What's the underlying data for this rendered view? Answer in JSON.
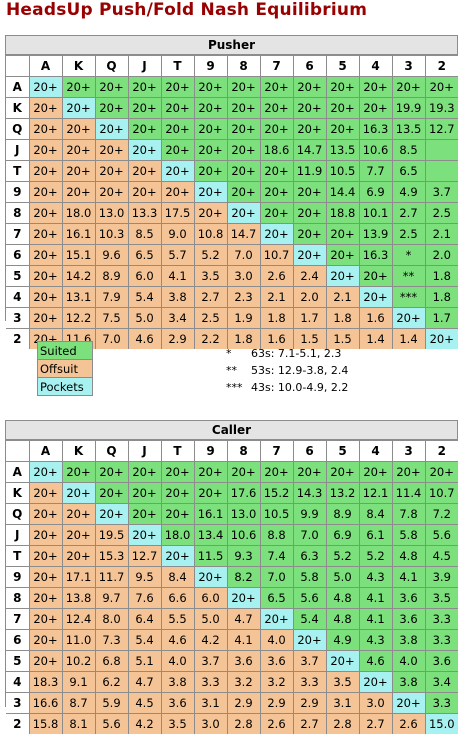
{
  "page": {
    "title": "HeadsUp Push/Fold Nash Equilibrium"
  },
  "ranks": [
    "A",
    "K",
    "Q",
    "J",
    "T",
    "9",
    "8",
    "7",
    "6",
    "5",
    "4",
    "3",
    "2"
  ],
  "pusher": {
    "title": "Pusher",
    "rows": [
      [
        "20+",
        "20+",
        "20+",
        "20+",
        "20+",
        "20+",
        "20+",
        "20+",
        "20+",
        "20+",
        "20+",
        "20+",
        "20+"
      ],
      [
        "20+",
        "20+",
        "20+",
        "20+",
        "20+",
        "20+",
        "20+",
        "20+",
        "20+",
        "20+",
        "20+",
        "19.9",
        "19.3"
      ],
      [
        "20+",
        "20+",
        "20+",
        "20+",
        "20+",
        "20+",
        "20+",
        "20+",
        "20+",
        "20+",
        "16.3",
        "13.5",
        "12.7"
      ],
      [
        "20+",
        "20+",
        "20+",
        "20+",
        "20+",
        "20+",
        "20+",
        "18.6",
        "14.7",
        "13.5",
        "10.6",
        "8.5",
        ""
      ],
      [
        "20+",
        "20+",
        "20+",
        "20+",
        "20+",
        "20+",
        "20+",
        "20+",
        "11.9",
        "10.5",
        "7.7",
        "6.5",
        ""
      ],
      [
        "20+",
        "20+",
        "20+",
        "20+",
        "20+",
        "20+",
        "20+",
        "20+",
        "20+",
        "14.4",
        "6.9",
        "4.9",
        "3.7"
      ],
      [
        "20+",
        "18.0",
        "13.0",
        "13.3",
        "17.5",
        "20+",
        "20+",
        "20+",
        "20+",
        "18.8",
        "10.1",
        "2.7",
        "2.5"
      ],
      [
        "20+",
        "16.1",
        "10.3",
        "8.5",
        "9.0",
        "10.8",
        "14.7",
        "20+",
        "20+",
        "20+",
        "13.9",
        "2.5",
        "2.1"
      ],
      [
        "20+",
        "15.1",
        "9.6",
        "6.5",
        "5.7",
        "5.2",
        "7.0",
        "10.7",
        "20+",
        "20+",
        "16.3",
        "*",
        "2.0"
      ],
      [
        "20+",
        "14.2",
        "8.9",
        "6.0",
        "4.1",
        "3.5",
        "3.0",
        "2.6",
        "2.4",
        "20+",
        "20+",
        "**",
        "1.8"
      ],
      [
        "20+",
        "13.1",
        "7.9",
        "5.4",
        "3.8",
        "2.7",
        "2.3",
        "2.1",
        "2.0",
        "2.1",
        "20+",
        "***",
        "1.8"
      ],
      [
        "20+",
        "12.2",
        "7.5",
        "5.0",
        "3.4",
        "2.5",
        "1.9",
        "1.8",
        "1.7",
        "1.8",
        "1.6",
        "20+",
        "1.7"
      ],
      [
        "20+",
        "11.6",
        "7.0",
        "4.6",
        "2.9",
        "2.2",
        "1.8",
        "1.6",
        "1.5",
        "1.5",
        "1.4",
        "1.4",
        "20+"
      ]
    ]
  },
  "caller": {
    "title": "Caller",
    "rows": [
      [
        "20+",
        "20+",
        "20+",
        "20+",
        "20+",
        "20+",
        "20+",
        "20+",
        "20+",
        "20+",
        "20+",
        "20+",
        "20+"
      ],
      [
        "20+",
        "20+",
        "20+",
        "20+",
        "20+",
        "20+",
        "17.6",
        "15.2",
        "14.3",
        "13.2",
        "12.1",
        "11.4",
        "10.7"
      ],
      [
        "20+",
        "20+",
        "20+",
        "20+",
        "20+",
        "16.1",
        "13.0",
        "10.5",
        "9.9",
        "8.9",
        "8.4",
        "7.8",
        "7.2"
      ],
      [
        "20+",
        "20+",
        "19.5",
        "20+",
        "18.0",
        "13.4",
        "10.6",
        "8.8",
        "7.0",
        "6.9",
        "6.1",
        "5.8",
        "5.6"
      ],
      [
        "20+",
        "20+",
        "15.3",
        "12.7",
        "20+",
        "11.5",
        "9.3",
        "7.4",
        "6.3",
        "5.2",
        "5.2",
        "4.8",
        "4.5"
      ],
      [
        "20+",
        "17.1",
        "11.7",
        "9.5",
        "8.4",
        "20+",
        "8.2",
        "7.0",
        "5.8",
        "5.0",
        "4.3",
        "4.1",
        "3.9"
      ],
      [
        "20+",
        "13.8",
        "9.7",
        "7.6",
        "6.6",
        "6.0",
        "20+",
        "6.5",
        "5.6",
        "4.8",
        "4.1",
        "3.6",
        "3.5"
      ],
      [
        "20+",
        "12.4",
        "8.0",
        "6.4",
        "5.5",
        "5.0",
        "4.7",
        "20+",
        "5.4",
        "4.8",
        "4.1",
        "3.6",
        "3.3"
      ],
      [
        "20+",
        "11.0",
        "7.3",
        "5.4",
        "4.6",
        "4.2",
        "4.1",
        "4.0",
        "20+",
        "4.9",
        "4.3",
        "3.8",
        "3.3"
      ],
      [
        "20+",
        "10.2",
        "6.8",
        "5.1",
        "4.0",
        "3.7",
        "3.6",
        "3.6",
        "3.7",
        "20+",
        "4.6",
        "4.0",
        "3.6"
      ],
      [
        "18.3",
        "9.1",
        "6.2",
        "4.7",
        "3.8",
        "3.3",
        "3.2",
        "3.2",
        "3.3",
        "3.5",
        "20+",
        "3.8",
        "3.4"
      ],
      [
        "16.6",
        "8.7",
        "5.9",
        "4.5",
        "3.6",
        "3.1",
        "2.9",
        "2.9",
        "2.9",
        "3.1",
        "3.0",
        "20+",
        "3.3"
      ],
      [
        "15.8",
        "8.1",
        "5.6",
        "4.2",
        "3.5",
        "3.0",
        "2.8",
        "2.6",
        "2.7",
        "2.8",
        "2.7",
        "2.6",
        "15.0"
      ]
    ]
  },
  "legend": {
    "suited": "Suited",
    "offsuit": "Offsuit",
    "pockets": "Pockets"
  },
  "footnotes": [
    {
      "mark": "*",
      "text": "63s: 7.1-5.1, 2.3"
    },
    {
      "mark": "**",
      "text": "53s: 12.9-3.8, 2.4"
    },
    {
      "mark": "***",
      "text": "43s: 10.0-4.9, 2.2"
    }
  ],
  "colors": {
    "suited": "#7ce07c",
    "offsuit": "#f5c496",
    "pockets": "#a7f1f1",
    "title": "#990000"
  }
}
